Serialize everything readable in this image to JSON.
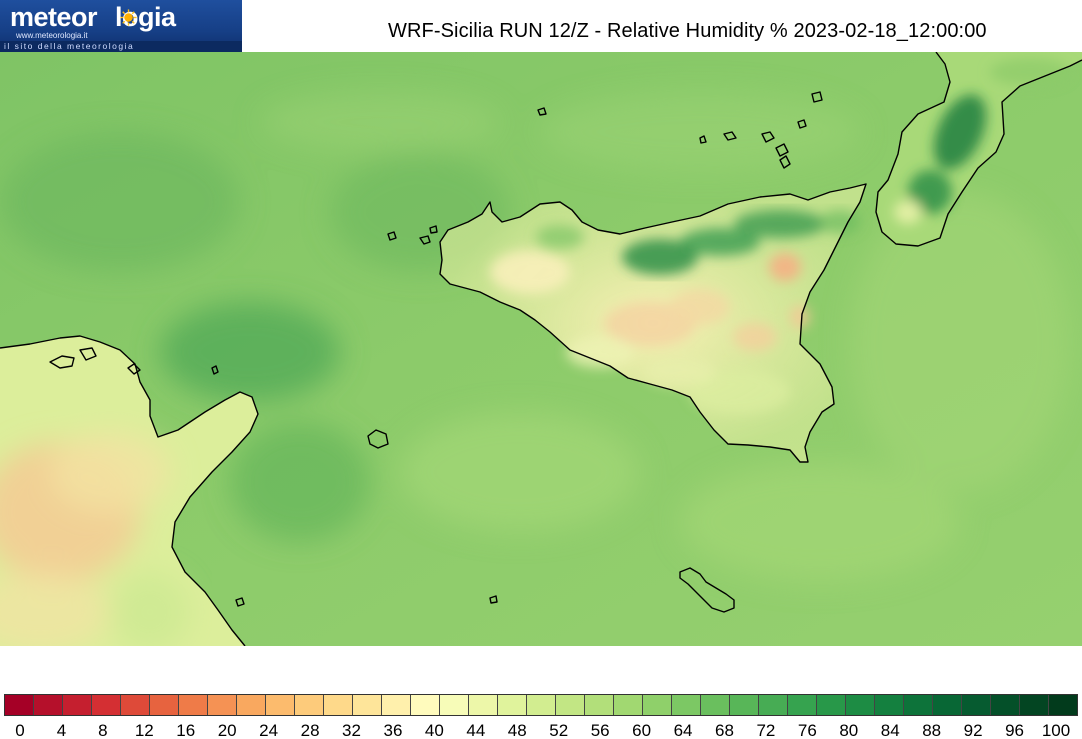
{
  "header": {
    "logo": {
      "brand_left": "meteor",
      "brand_right": "logia",
      "url": "www.meteorologia.it",
      "tagline": "il sito della meteorologia",
      "icon": "sun-icon"
    },
    "title": "WRF-Sicilia RUN 12/Z - Relative Humidity % 2023-02-18_12:00:00"
  },
  "legend": {
    "tick_labels": [
      "0",
      "4",
      "8",
      "12",
      "16",
      "20",
      "24",
      "28",
      "32",
      "36",
      "40",
      "44",
      "48",
      "52",
      "56",
      "60",
      "64",
      "68",
      "72",
      "76",
      "80",
      "84",
      "88",
      "92",
      "96",
      "100"
    ],
    "colors": [
      "#a50026",
      "#b5102b",
      "#c51f2f",
      "#d42f33",
      "#de4a39",
      "#e7633f",
      "#ef7b48",
      "#f59254",
      "#f9a85f",
      "#fcbb6d",
      "#fdcb7b",
      "#fed98a",
      "#fee59a",
      "#fff0ac",
      "#fffbbd",
      "#f7fcb8",
      "#edf7a9",
      "#e0f39c",
      "#d2ed90",
      "#c2e684",
      "#b2df7a",
      "#a1d871",
      "#8fd06a",
      "#7cc864",
      "#6abf5e",
      "#58b658",
      "#47ac54",
      "#36a34f",
      "#289849",
      "#1d8c44",
      "#14803f",
      "#0d733a",
      "#086735",
      "#065b30",
      "#045029",
      "#034522",
      "#023b1c"
    ]
  },
  "map": {
    "colors": {
      "sea": "#8fcc6b",
      "sea_dark": "#6fbb5e",
      "sea_light": "#a9d87a",
      "land_dry": "#f4e8a8",
      "land_dryer": "#f6c994",
      "mountain_humid": "#3e9e52",
      "coastline": "#000000"
    }
  }
}
